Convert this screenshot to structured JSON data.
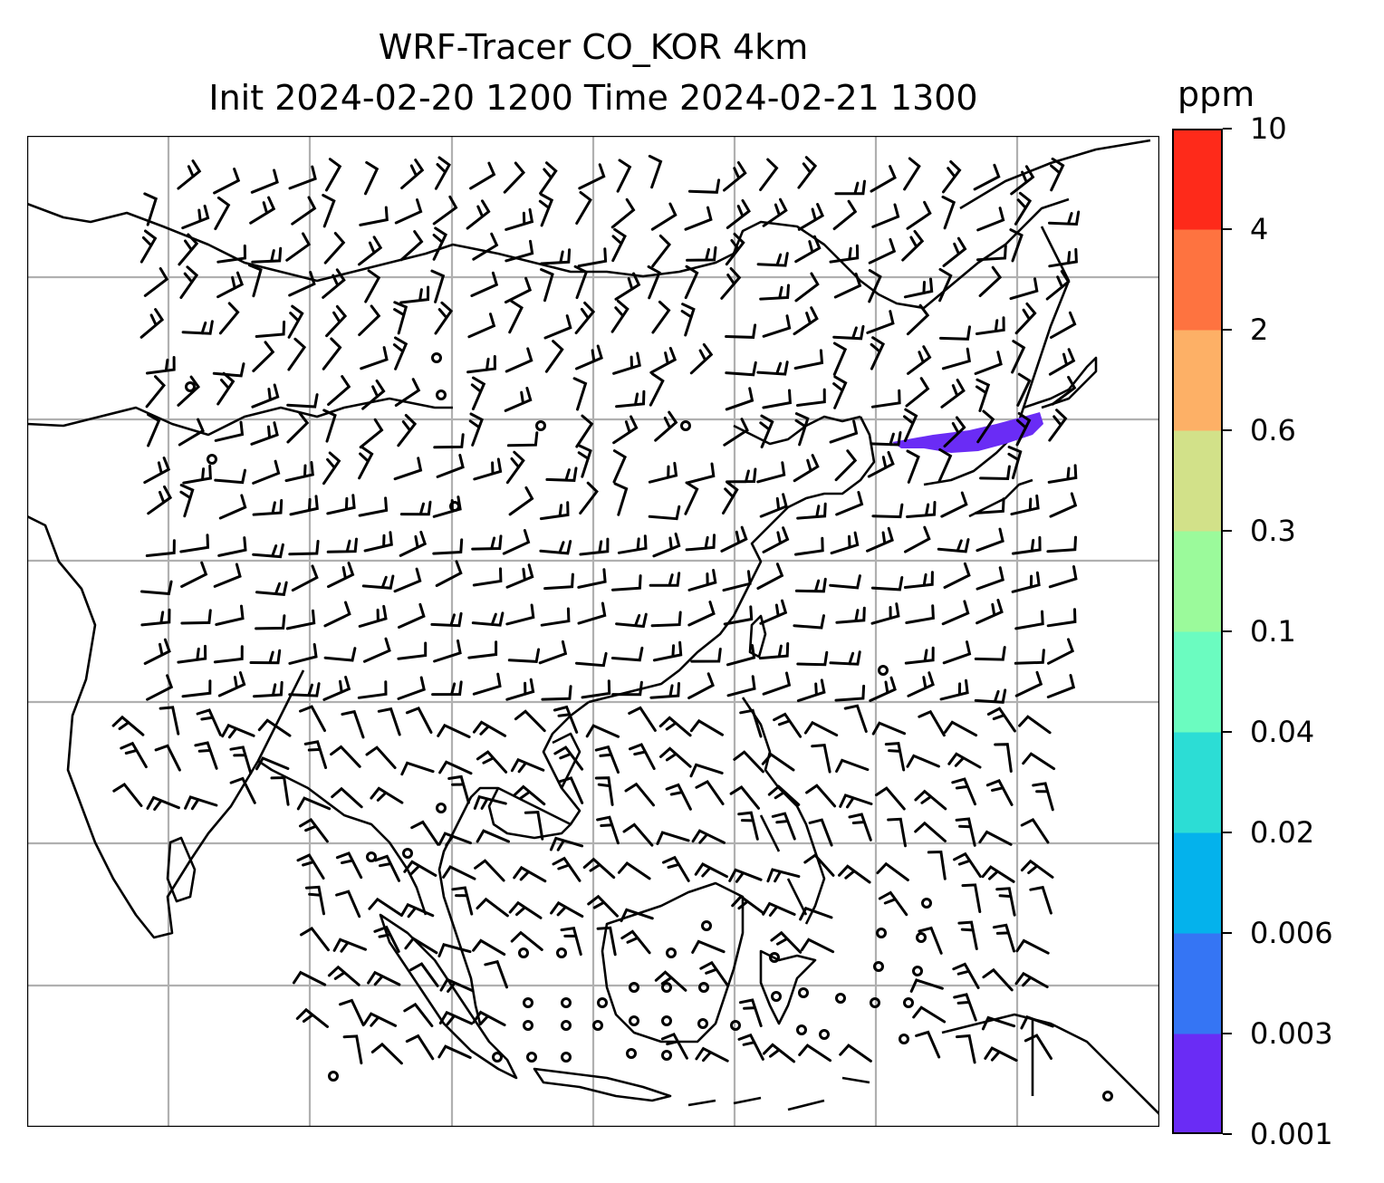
{
  "title": {
    "line1": "WRF-Tracer CO_KOR 4km",
    "line2": "Init 2024-02-20 1200 Time 2024-02-21 1300"
  },
  "map": {
    "variable": "CO tracer",
    "projection_gridlines": true,
    "overlay": "wind barbs",
    "plume_color": "#6a2cf5"
  },
  "colorbar": {
    "unit": "ppm",
    "levels": [
      "0.001",
      "0.003",
      "0.006",
      "0.02",
      "0.04",
      "0.1",
      "0.3",
      "0.6",
      "2",
      "4",
      "10"
    ],
    "colors": [
      "#6a2cf5",
      "#3575f4",
      "#04b2ec",
      "#2cddd5",
      "#6bfcc0",
      "#9bfa9b",
      "#d2e189",
      "#fdb066",
      "#fe7340",
      "#fe2a1a"
    ]
  }
}
